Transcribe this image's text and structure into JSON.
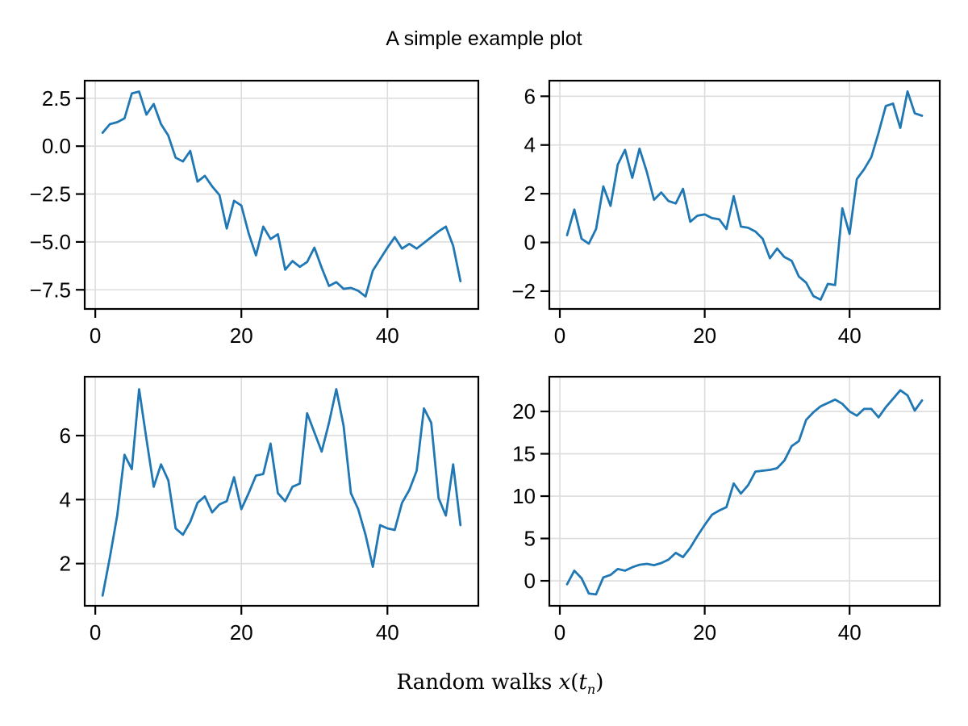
{
  "figure": {
    "title": "A simple example plot",
    "xlabel_parts": {
      "text": "Random walks ",
      "var1": "x",
      "open": "(",
      "var2": "t",
      "sub": "n",
      "close": ")"
    },
    "background_color": "#ffffff",
    "text_color": "#000000",
    "grid_color": "#dddddd",
    "spine_color": "#000000",
    "line_color": "#1f77b4"
  },
  "chart_data": [
    {
      "position": "top-left",
      "type": "line",
      "title": "",
      "x": [
        1,
        2,
        3,
        4,
        5,
        6,
        7,
        8,
        9,
        10,
        11,
        12,
        13,
        14,
        15,
        16,
        17,
        18,
        19,
        20,
        21,
        22,
        23,
        24,
        25,
        26,
        27,
        28,
        29,
        30,
        31,
        32,
        33,
        34,
        35,
        36,
        37,
        38,
        39,
        40,
        41,
        42,
        43,
        44,
        45,
        46,
        47,
        48,
        49,
        50
      ],
      "y": [
        0.7,
        1.15,
        1.25,
        1.45,
        2.75,
        2.85,
        1.65,
        2.2,
        1.15,
        0.55,
        -0.6,
        -0.8,
        -0.25,
        -1.85,
        -1.55,
        -2.1,
        -2.55,
        -4.3,
        -2.85,
        -3.1,
        -4.55,
        -5.7,
        -4.2,
        -4.85,
        -4.6,
        -6.45,
        -6.0,
        -6.3,
        -6.05,
        -5.3,
        -6.35,
        -7.3,
        -7.1,
        -7.45,
        -7.4,
        -7.55,
        -7.85,
        -6.5,
        -5.9,
        -5.3,
        -4.75,
        -5.35,
        -5.1,
        -5.35,
        -5.05,
        -4.75,
        -4.45,
        -4.2,
        -5.2,
        -7.05
      ],
      "xlim": [
        -1.45,
        52.45
      ],
      "ylim": [
        -8.5,
        3.42
      ],
      "xticks": [
        0,
        20,
        40
      ],
      "xtick_labels": [
        "0",
        "20",
        "40"
      ],
      "yticks": [
        2.5,
        0.0,
        -2.5,
        -5.0,
        -7.5
      ],
      "ytick_labels": [
        "2.5",
        "0.0",
        "−2.5",
        "−5.0",
        "−7.5"
      ],
      "grid": true,
      "line_color": "#1f77b4"
    },
    {
      "position": "top-right",
      "type": "line",
      "title": "",
      "x": [
        1,
        2,
        3,
        4,
        5,
        6,
        7,
        8,
        9,
        10,
        11,
        12,
        13,
        14,
        15,
        16,
        17,
        18,
        19,
        20,
        21,
        22,
        23,
        24,
        25,
        26,
        27,
        28,
        29,
        30,
        31,
        32,
        33,
        34,
        35,
        36,
        37,
        38,
        39,
        40,
        41,
        42,
        43,
        44,
        45,
        46,
        47,
        48,
        49,
        50
      ],
      "y": [
        0.3,
        1.35,
        0.15,
        -0.05,
        0.55,
        2.3,
        1.5,
        3.2,
        3.8,
        2.65,
        3.85,
        2.9,
        1.75,
        2.05,
        1.7,
        1.6,
        2.2,
        0.85,
        1.1,
        1.15,
        1.0,
        0.95,
        0.55,
        1.9,
        0.65,
        0.6,
        0.45,
        0.15,
        -0.65,
        -0.25,
        -0.6,
        -0.75,
        -1.4,
        -1.65,
        -2.2,
        -2.35,
        -1.7,
        -1.75,
        1.4,
        0.35,
        2.6,
        3.0,
        3.5,
        4.5,
        5.6,
        5.7,
        4.7,
        6.2,
        5.3,
        5.2
      ],
      "xlim": [
        -1.45,
        52.45
      ],
      "ylim": [
        -2.73,
        6.64
      ],
      "xticks": [
        0,
        20,
        40
      ],
      "xtick_labels": [
        "0",
        "20",
        "40"
      ],
      "yticks": [
        6,
        4,
        2,
        0,
        -2
      ],
      "ytick_labels": [
        "6",
        "4",
        "2",
        "0",
        "−2"
      ],
      "grid": true,
      "line_color": "#1f77b4"
    },
    {
      "position": "bottom-left",
      "type": "line",
      "title": "",
      "x": [
        1,
        2,
        3,
        4,
        5,
        6,
        7,
        8,
        9,
        10,
        11,
        12,
        13,
        14,
        15,
        16,
        17,
        18,
        19,
        20,
        21,
        22,
        23,
        24,
        25,
        26,
        27,
        28,
        29,
        30,
        31,
        32,
        33,
        34,
        35,
        36,
        37,
        38,
        39,
        40,
        41,
        42,
        43,
        44,
        45,
        46,
        47,
        48,
        49,
        50
      ],
      "y": [
        1.0,
        2.2,
        3.5,
        5.4,
        4.95,
        7.45,
        5.9,
        4.4,
        5.1,
        4.6,
        3.1,
        2.9,
        3.3,
        3.9,
        4.1,
        3.6,
        3.85,
        3.95,
        4.7,
        3.7,
        4.2,
        4.75,
        4.8,
        5.75,
        4.2,
        3.95,
        4.4,
        4.5,
        6.7,
        6.1,
        5.5,
        6.4,
        7.45,
        6.3,
        4.2,
        3.7,
        2.9,
        1.9,
        3.2,
        3.1,
        3.05,
        3.9,
        4.3,
        4.9,
        6.85,
        6.4,
        4.05,
        3.5,
        5.1,
        3.2
      ],
      "xlim": [
        -1.45,
        52.45
      ],
      "ylim": [
        0.68,
        7.84
      ],
      "xticks": [
        0,
        20,
        40
      ],
      "xtick_labels": [
        "0",
        "20",
        "40"
      ],
      "yticks": [
        6,
        4,
        2
      ],
      "ytick_labels": [
        "6",
        "4",
        "2"
      ],
      "grid": true,
      "line_color": "#1f77b4"
    },
    {
      "position": "bottom-right",
      "type": "line",
      "title": "",
      "x": [
        1,
        2,
        3,
        4,
        5,
        6,
        7,
        8,
        9,
        10,
        11,
        12,
        13,
        14,
        15,
        16,
        17,
        18,
        19,
        20,
        21,
        22,
        23,
        24,
        25,
        26,
        27,
        28,
        29,
        30,
        31,
        32,
        33,
        34,
        35,
        36,
        37,
        38,
        39,
        40,
        41,
        42,
        43,
        44,
        45,
        46,
        47,
        48,
        49,
        50
      ],
      "y": [
        -0.4,
        1.2,
        0.3,
        -1.5,
        -1.6,
        0.4,
        0.7,
        1.4,
        1.2,
        1.6,
        1.9,
        2.0,
        1.85,
        2.1,
        2.5,
        3.3,
        2.8,
        3.9,
        5.3,
        6.6,
        7.8,
        8.3,
        8.7,
        11.5,
        10.3,
        11.3,
        12.9,
        13.0,
        13.1,
        13.3,
        14.2,
        15.9,
        16.5,
        19.0,
        19.9,
        20.6,
        21.0,
        21.4,
        20.9,
        20.0,
        19.5,
        20.3,
        20.3,
        19.3,
        20.5,
        21.5,
        22.5,
        21.9,
        20.1,
        21.3
      ],
      "xlim": [
        -1.45,
        52.45
      ],
      "ylim": [
        -2.95,
        24.1
      ],
      "xticks": [
        0,
        20,
        40
      ],
      "xtick_labels": [
        "0",
        "20",
        "40"
      ],
      "yticks": [
        20,
        15,
        10,
        5,
        0
      ],
      "ytick_labels": [
        "20",
        "15",
        "10",
        "5",
        "0"
      ],
      "grid": true,
      "line_color": "#1f77b4"
    }
  ]
}
